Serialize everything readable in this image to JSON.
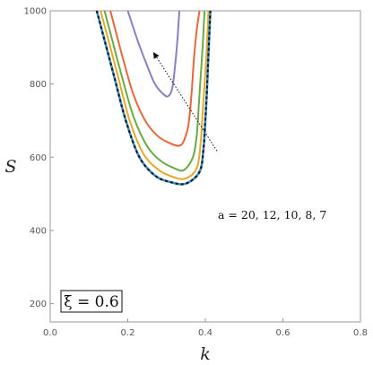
{
  "chart_data": {
    "type": "line",
    "title": "",
    "xlabel": "k",
    "ylabel": "S",
    "xlim": [
      0.0,
      0.8
    ],
    "ylim": [
      150,
      1000
    ],
    "x_ticks": [
      "0.0",
      "0.2",
      "0.4",
      "0.6",
      "0.8"
    ],
    "x_tick_values": [
      0.0,
      0.2,
      0.4,
      0.6,
      0.8
    ],
    "y_ticks": [
      "200",
      "400",
      "600",
      "800",
      "1000"
    ],
    "y_tick_values": [
      200,
      400,
      600,
      800,
      1000
    ],
    "grid": false,
    "annotation": {
      "text": "a = 20, 12, 10, 8, 7",
      "arrow_from": [
        0.43,
        617
      ],
      "arrow_to": [
        0.27,
        880
      ]
    },
    "inset_label": "ξ = 0.6",
    "colors": {
      "a20": "#8c7fc1",
      "a12": "#e4683c",
      "a10": "#6aaa46",
      "a8": "#e6a92b",
      "a7": "#3a8fc4",
      "dashed": "#111111"
    },
    "series": [
      {
        "a": "20",
        "color": "#8c7fc1",
        "style": "solid",
        "left": [
          [
            0.2,
            1000
          ],
          [
            0.225,
            920
          ],
          [
            0.25,
            850
          ],
          [
            0.27,
            800
          ],
          [
            0.292,
            772
          ],
          [
            0.305,
            767
          ]
        ],
        "right": [
          [
            0.305,
            767
          ],
          [
            0.315,
            790
          ],
          [
            0.322,
            850
          ],
          [
            0.328,
            920
          ],
          [
            0.333,
            1000
          ]
        ]
      },
      {
        "a": "12",
        "color": "#e4683c",
        "style": "solid",
        "left": [
          [
            0.155,
            1000
          ],
          [
            0.17,
            940
          ],
          [
            0.19,
            860
          ],
          [
            0.215,
            770
          ],
          [
            0.245,
            700
          ],
          [
            0.275,
            660
          ],
          [
            0.305,
            640
          ],
          [
            0.335,
            632
          ]
        ],
        "right": [
          [
            0.335,
            632
          ],
          [
            0.35,
            660
          ],
          [
            0.358,
            700
          ],
          [
            0.365,
            780
          ],
          [
            0.37,
            860
          ],
          [
            0.377,
            940
          ],
          [
            0.385,
            1000
          ]
        ]
      },
      {
        "a": "10",
        "color": "#6aaa46",
        "style": "solid",
        "left": [
          [
            0.14,
            1000
          ],
          [
            0.16,
            920
          ],
          [
            0.185,
            820
          ],
          [
            0.215,
            710
          ],
          [
            0.25,
            630
          ],
          [
            0.285,
            590
          ],
          [
            0.32,
            570
          ],
          [
            0.345,
            565
          ]
        ],
        "right": [
          [
            0.345,
            565
          ],
          [
            0.368,
            600
          ],
          [
            0.378,
            660
          ],
          [
            0.383,
            740
          ],
          [
            0.388,
            820
          ],
          [
            0.393,
            900
          ],
          [
            0.398,
            1000
          ]
        ]
      },
      {
        "a": "8",
        "color": "#e6a92b",
        "style": "solid",
        "left": [
          [
            0.13,
            1000
          ],
          [
            0.15,
            920
          ],
          [
            0.175,
            820
          ],
          [
            0.205,
            700
          ],
          [
            0.24,
            610
          ],
          [
            0.28,
            565
          ],
          [
            0.32,
            545
          ],
          [
            0.35,
            542
          ]
        ],
        "right": [
          [
            0.35,
            542
          ],
          [
            0.378,
            570
          ],
          [
            0.388,
            640
          ],
          [
            0.393,
            720
          ],
          [
            0.398,
            800
          ],
          [
            0.403,
            880
          ],
          [
            0.408,
            1000
          ]
        ]
      },
      {
        "a": "7",
        "color": "#3a8fc4",
        "style": "solid",
        "left": [
          [
            0.12,
            1000
          ],
          [
            0.14,
            920
          ],
          [
            0.165,
            820
          ],
          [
            0.195,
            700
          ],
          [
            0.23,
            600
          ],
          [
            0.27,
            550
          ],
          [
            0.31,
            532
          ],
          [
            0.35,
            528
          ]
        ],
        "right": [
          [
            0.35,
            528
          ],
          [
            0.385,
            560
          ],
          [
            0.395,
            620
          ],
          [
            0.4,
            700
          ],
          [
            0.404,
            780
          ],
          [
            0.408,
            880
          ],
          [
            0.413,
            1000
          ]
        ]
      },
      {
        "a": "7",
        "color": "#111111",
        "style": "dashed",
        "left": [
          [
            0.12,
            1000
          ],
          [
            0.14,
            920
          ],
          [
            0.165,
            820
          ],
          [
            0.195,
            700
          ],
          [
            0.23,
            600
          ],
          [
            0.27,
            550
          ],
          [
            0.31,
            532
          ],
          [
            0.35,
            528
          ]
        ],
        "right": [
          [
            0.35,
            528
          ],
          [
            0.385,
            560
          ],
          [
            0.395,
            620
          ],
          [
            0.4,
            700
          ],
          [
            0.404,
            780
          ],
          [
            0.408,
            880
          ],
          [
            0.413,
            1000
          ]
        ]
      }
    ]
  }
}
